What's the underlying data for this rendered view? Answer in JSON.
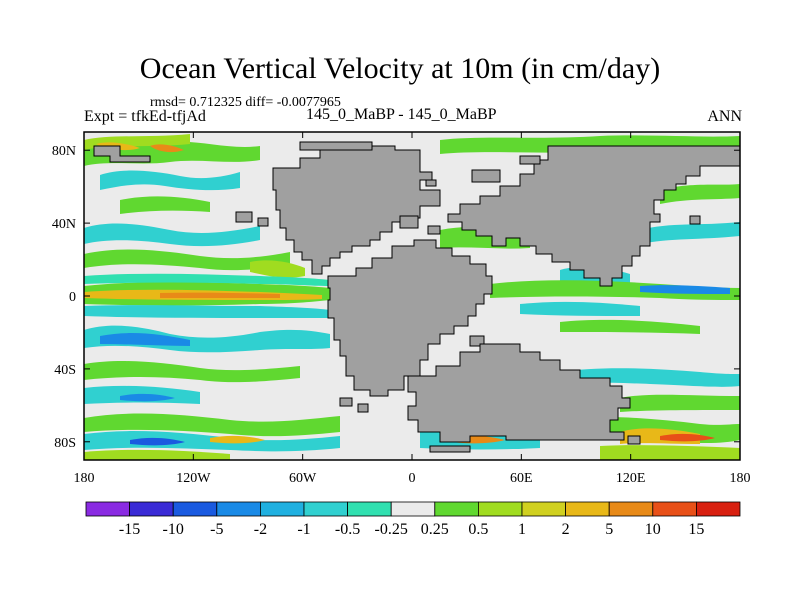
{
  "title": "Ocean Vertical Velocity at 10m (in cm/day)",
  "stats_line": "rmsd= 0.712325  diff= -0.0077965",
  "experiment_label": "Expt = tfkEd-tfjAd",
  "center_label": "145_0_MaBP - 145_0_MaBP",
  "season_label": "ANN",
  "map": {
    "projection": "cylindrical equidistant",
    "lon_range": [
      -180,
      180
    ],
    "lat_range": [
      -90,
      90
    ],
    "lon_ticks": [
      {
        "value": -180,
        "label": "180"
      },
      {
        "value": -120,
        "label": "120W"
      },
      {
        "value": -60,
        "label": "60W"
      },
      {
        "value": 0,
        "label": "0"
      },
      {
        "value": 60,
        "label": "60E"
      },
      {
        "value": 120,
        "label": "120E"
      },
      {
        "value": 180,
        "label": "180"
      }
    ],
    "lat_ticks": [
      {
        "value": 80,
        "label": "80N"
      },
      {
        "value": 40,
        "label": "40N"
      },
      {
        "value": 0,
        "label": "0"
      },
      {
        "value": -40,
        "label": "40S"
      },
      {
        "value": -80,
        "label": "80S"
      }
    ],
    "land_color": "#a0a0a0",
    "ocean_background": "#ebebeb"
  },
  "colorbar": {
    "levels": [
      "-15",
      "-10",
      "-5",
      "-2",
      "-1",
      "-0.5",
      "-0.25",
      "0.25",
      "0.5",
      "1",
      "2",
      "5",
      "10",
      "15"
    ],
    "colors": [
      "#8a2be2",
      "#3a2bd6",
      "#1a5ae0",
      "#1a8ae6",
      "#20b0e0",
      "#30d0d0",
      "#30e0b0",
      "#ebebeb",
      "#60d830",
      "#a0dc20",
      "#d0d020",
      "#e8b818",
      "#e88a18",
      "#e85018",
      "#d82010"
    ]
  }
}
